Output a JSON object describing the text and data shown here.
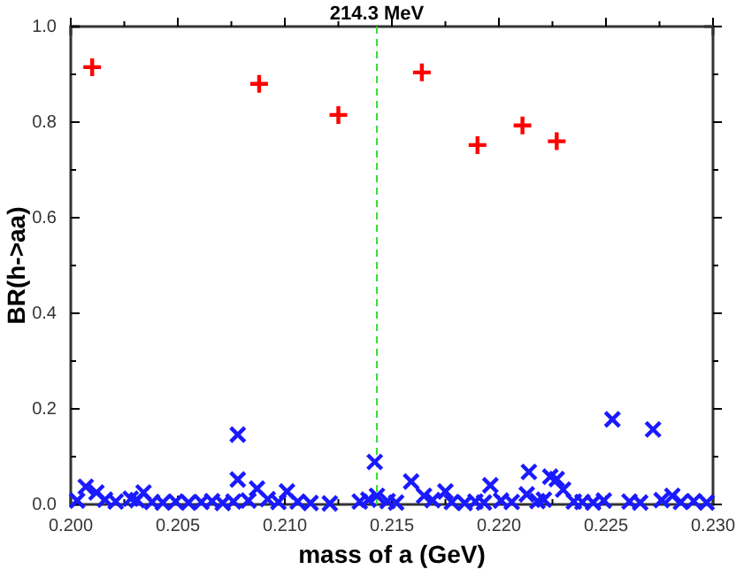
{
  "chart_data": {
    "type": "scatter",
    "xlabel": "mass of a (GeV)",
    "ylabel": "BR(h->aa)",
    "xlim": [
      0.2,
      0.23
    ],
    "ylim": [
      0,
      1.0
    ],
    "xticks": [
      {
        "value": 0.2,
        "label": "0.200"
      },
      {
        "value": 0.2025,
        "label": null
      },
      {
        "value": 0.205,
        "label": "0.205"
      },
      {
        "value": 0.2075,
        "label": null
      },
      {
        "value": 0.21,
        "label": "0.210"
      },
      {
        "value": 0.2125,
        "label": null
      },
      {
        "value": 0.215,
        "label": "0.215"
      },
      {
        "value": 0.2175,
        "label": null
      },
      {
        "value": 0.22,
        "label": "0.220"
      },
      {
        "value": 0.2225,
        "label": null
      },
      {
        "value": 0.225,
        "label": "0.225"
      },
      {
        "value": 0.2275,
        "label": null
      },
      {
        "value": 0.23,
        "label": "0.230"
      }
    ],
    "yticks": [
      {
        "value": 0,
        "label": "0.0"
      },
      {
        "value": 0.1,
        "label": null
      },
      0.2,
      {
        "value": 0.3,
        "label": null
      },
      0.4,
      {
        "value": 0.5,
        "label": null
      },
      0.6,
      {
        "value": 0.7,
        "label": null
      },
      0.8,
      {
        "value": 0.9,
        "label": null
      },
      {
        "value": 1.0,
        "label": "1.0"
      }
    ],
    "grid": false,
    "ref_lines": [
      {
        "axis": "x",
        "value": 0.2143,
        "label": "214.3 MeV",
        "color": "#33dd33",
        "line_style": "dashed"
      }
    ],
    "series": [
      {
        "color": "#ff0000",
        "marker": "plus",
        "x": [
          0.201,
          0.2088,
          0.2125,
          0.2164,
          0.219,
          0.2211,
          0.2227
        ],
        "values": [
          0.915,
          0.88,
          0.815,
          0.904,
          0.752,
          0.793,
          0.76
        ]
      },
      {
        "color": "#1a1aff",
        "marker": "cross",
        "x": [
          0.2078,
          0.2078,
          0.2087,
          0.2142,
          0.2159,
          0.2214,
          0.2224,
          0.2227,
          0.2253,
          0.2272,
          0.2196,
          0.2175,
          0.223,
          0.2007,
          0.2012,
          0.2034,
          0.2101,
          0.2281,
          0.2213,
          0.2165,
          0.2143,
          0.2003,
          0.2016,
          0.2021,
          0.2028,
          0.2031,
          0.2038,
          0.2043,
          0.2049,
          0.2055,
          0.2061,
          0.2066,
          0.2071,
          0.2076,
          0.2083,
          0.2092,
          0.2097,
          0.2106,
          0.2112,
          0.2121,
          0.2135,
          0.2139,
          0.2148,
          0.2152,
          0.2169,
          0.2178,
          0.2184,
          0.2189,
          0.2193,
          0.2201,
          0.2206,
          0.2218,
          0.2221,
          0.2235,
          0.2239,
          0.2244,
          0.2249,
          0.2261,
          0.2266,
          0.2276,
          0.2285,
          0.2291,
          0.2297
        ],
        "values": [
          0.146,
          0.052,
          0.033,
          0.089,
          0.048,
          0.068,
          0.058,
          0.053,
          0.178,
          0.157,
          0.04,
          0.027,
          0.031,
          0.037,
          0.025,
          0.025,
          0.027,
          0.018,
          0.021,
          0.018,
          0.018,
          0.008,
          0.01,
          0.006,
          0.012,
          0.009,
          0.005,
          0.004,
          0.006,
          0.004,
          0.005,
          0.007,
          0.003,
          0.006,
          0.008,
          0.011,
          0.005,
          0.006,
          0.003,
          0.002,
          0.006,
          0.01,
          0.007,
          0.004,
          0.009,
          0.005,
          0.003,
          0.006,
          0.004,
          0.008,
          0.005,
          0.007,
          0.01,
          0.006,
          0.005,
          0.004,
          0.008,
          0.006,
          0.004,
          0.009,
          0.005,
          0.007,
          0.004
        ]
      }
    ]
  }
}
